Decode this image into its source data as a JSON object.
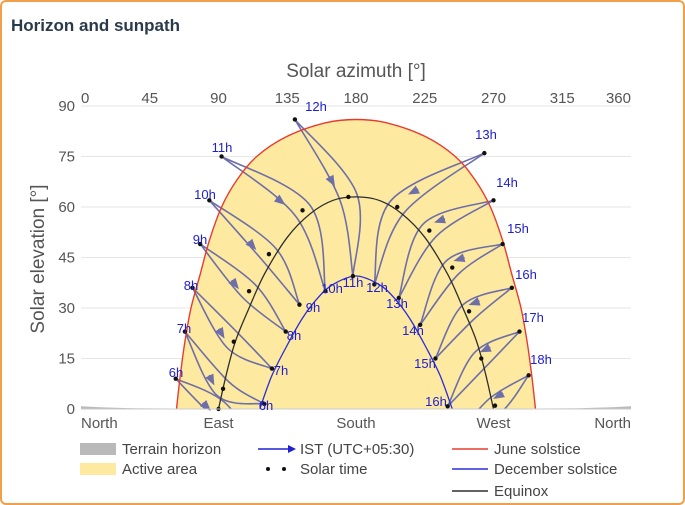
{
  "panel": {
    "title": "Horizon and sunpath"
  },
  "chart_data": {
    "type": "line",
    "title": "",
    "xlabel_top": "Solar azimuth [°]",
    "ylabel": "Solar elevation [°]",
    "xlim": [
      0,
      360
    ],
    "ylim": [
      0,
      90
    ],
    "x_top_ticks": [
      "0",
      "45",
      "90",
      "135",
      "180",
      "225",
      "270",
      "315",
      "360"
    ],
    "y_ticks": [
      "0",
      "15",
      "30",
      "45",
      "60",
      "75",
      "90"
    ],
    "x_bottom_ticks": [
      {
        "az": 0,
        "label": "North"
      },
      {
        "az": 90,
        "label": "East"
      },
      {
        "az": 180,
        "label": "South"
      },
      {
        "az": 270,
        "label": "West"
      },
      {
        "az": 360,
        "label": "North"
      }
    ],
    "grid": true,
    "colors": {
      "active": "#fdeaa0",
      "terrain": "#b9b9b9",
      "june": "#e83b2f",
      "december": "#2b2bd9",
      "equinox": "#2e2e2e",
      "analemma": "#6e6ea8",
      "hour_label": "#2020d0",
      "axis_text": "#555555"
    },
    "series": [
      {
        "name": "June solstice",
        "x": [
          62.5,
          65,
          68,
          72,
          78,
          84,
          92,
          102,
          115,
          135,
          160,
          180,
          200,
          225,
          245,
          258,
          268,
          276,
          282,
          288,
          292,
          295,
          297.5
        ],
        "y": [
          0,
          10,
          20,
          30,
          40,
          50,
          60,
          68,
          75,
          81,
          85,
          86,
          85,
          81,
          75,
          68,
          60,
          50,
          40,
          30,
          20,
          10,
          0
        ]
      },
      {
        "name": "December solstice",
        "x": [
          117,
          125,
          135,
          145,
          155,
          165,
          180,
          195,
          205,
          215,
          225,
          235,
          243
        ],
        "y": [
          0,
          10,
          19,
          27,
          33,
          37,
          39.5,
          37,
          33,
          27,
          19,
          10,
          0
        ]
      },
      {
        "name": "Equinox",
        "x": [
          90,
          95,
          101,
          110,
          120,
          135,
          150,
          165,
          180,
          195,
          210,
          225,
          240,
          250,
          259,
          265,
          270
        ],
        "y": [
          0,
          10,
          20,
          30,
          40,
          51,
          58,
          62,
          63,
          62,
          58,
          51,
          40,
          30,
          20,
          10,
          0
        ]
      }
    ],
    "terrain_horizon": {
      "x": [
        0,
        12,
        35,
        60,
        300,
        325,
        348,
        360
      ],
      "y": [
        0.8,
        0.5,
        0.2,
        0,
        0,
        0.2,
        0.5,
        0.8
      ]
    },
    "analemmas": [
      {
        "label": "6h",
        "june": [
          62,
          9
        ],
        "eq": [
          90,
          0
        ],
        "dec": [
          118,
          -13
        ]
      },
      {
        "label": "7h",
        "june": [
          68,
          23
        ],
        "eq": [
          93,
          6
        ],
        "dec": [
          120,
          1.5
        ]
      },
      {
        "label": "8h",
        "june": [
          73,
          36
        ],
        "eq": [
          100,
          20
        ],
        "dec": [
          125,
          12
        ]
      },
      {
        "label": "9h",
        "june": [
          78,
          49
        ],
        "eq": [
          110,
          35
        ],
        "dec": [
          134,
          23
        ]
      },
      {
        "label": "10h",
        "june": [
          84,
          62
        ],
        "eq": [
          123,
          46
        ],
        "dec": [
          143,
          31
        ]
      },
      {
        "label": "11h",
        "june": [
          92,
          75
        ],
        "eq": [
          145,
          59
        ],
        "dec": [
          160,
          35
        ]
      },
      {
        "label": "12h",
        "june": [
          140,
          86
        ],
        "eq": [
          175,
          63
        ],
        "dec": [
          178,
          39.5
        ]
      },
      {
        "label": "13h",
        "june": [
          264,
          76
        ],
        "eq": [
          207,
          60
        ],
        "dec": [
          192,
          37
        ]
      },
      {
        "label": "14h",
        "june": [
          270,
          62
        ],
        "eq": [
          228,
          53
        ],
        "dec": [
          208,
          33
        ]
      },
      {
        "label": "15h",
        "june": [
          276,
          49
        ],
        "eq": [
          243,
          42
        ],
        "dec": [
          222,
          25
        ]
      },
      {
        "label": "16h",
        "june": [
          282,
          36
        ],
        "eq": [
          254,
          29
        ],
        "dec": [
          232,
          15
        ]
      },
      {
        "label": "17h",
        "june": [
          287,
          23
        ],
        "eq": [
          262,
          15
        ],
        "dec": [
          240,
          0.8
        ]
      },
      {
        "label": "18h",
        "june": [
          293,
          10
        ],
        "eq": [
          271,
          1
        ],
        "dec": [
          246,
          -8
        ]
      }
    ],
    "hour_labels": [
      {
        "text": "6h",
        "x": 60,
        "y": 6
      },
      {
        "text": "7h",
        "x": 68,
        "y": 13
      },
      {
        "text": "8h",
        "x": 74,
        "y": 20
      },
      {
        "text": "9h",
        "x": 81,
        "y": 30
      },
      {
        "text": "10h",
        "x": 89,
        "y": 38
      },
      {
        "text": "11h",
        "x": 101,
        "y": 45
      },
      {
        "text": "12h",
        "x": 114,
        "y": 53
      },
      {
        "text": "13h",
        "x": 127,
        "y": 61
      },
      {
        "text": "14h",
        "x": 140,
        "y": 67
      },
      {
        "text": "15h",
        "x": 161,
        "y": 73
      },
      {
        "text": "16h",
        "x": 185,
        "y": 78
      },
      {
        "text": "17h",
        "x": 194,
        "y": 84
      },
      {
        "text": "18h",
        "x": 202,
        "y": 89
      },
      {
        "text": "6h",
        "x": 55,
        "y": 120
      },
      {
        "text": "7h",
        "x": 60,
        "y": 112
      },
      {
        "text": "8h",
        "x": 65,
        "y": 104
      },
      {
        "text": "9h",
        "x": 70,
        "y": 98
      },
      {
        "text": "10h",
        "x": 76,
        "y": 89
      },
      {
        "text": "11h",
        "x": 83,
        "y": 82
      },
      {
        "text": "12h",
        "x": 90,
        "y": 75
      },
      {
        "text": "13h",
        "x": 99,
        "y": 67
      },
      {
        "text": "14h",
        "x": 109,
        "y": 61
      },
      {
        "text": "15h",
        "x": 121,
        "y": 53
      },
      {
        "text": "16h",
        "x": 134,
        "y": 46
      },
      {
        "text": "17h",
        "x": 148,
        "y": 38
      },
      {
        "text": "18h",
        "x": 165,
        "y": 30
      }
    ],
    "legend": {
      "placement": "bottom",
      "items": [
        {
          "label": "Terrain horizon",
          "kind": "swatch-gray"
        },
        {
          "label": "IST (UTC+05:30)",
          "kind": "arrow-blue"
        },
        {
          "label": "June solstice",
          "kind": "line-red"
        },
        {
          "label": "Active area",
          "kind": "swatch-yellow"
        },
        {
          "label": "Solar time",
          "kind": "dots"
        },
        {
          "label": "December solstice",
          "kind": "line-blue"
        },
        {
          "label": "Equinox",
          "kind": "line-black"
        }
      ]
    }
  }
}
